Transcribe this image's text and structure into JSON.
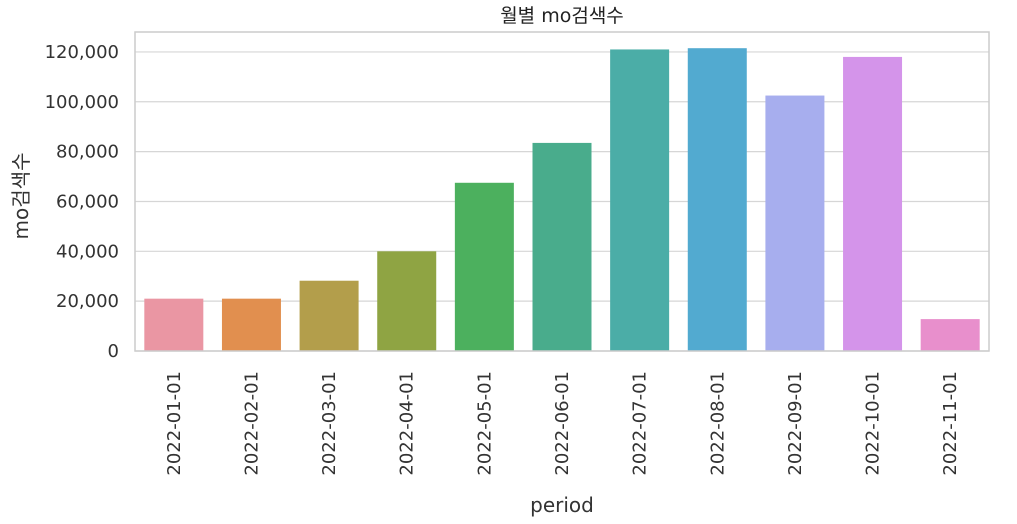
{
  "chart_data": {
    "type": "bar",
    "title": "월별 mo검색수",
    "xlabel": "period",
    "ylabel": "mo검색수",
    "categories": [
      "2022-01-01",
      "2022-02-01",
      "2022-03-01",
      "2022-04-01",
      "2022-05-01",
      "2022-06-01",
      "2022-07-01",
      "2022-08-01",
      "2022-09-01",
      "2022-10-01",
      "2022-11-01"
    ],
    "values": [
      21000,
      21000,
      28200,
      40000,
      67500,
      83500,
      121000,
      121500,
      102500,
      118000,
      12800
    ],
    "colors": [
      "#ea96a3",
      "#e18f4f",
      "#b39e4b",
      "#8fa443",
      "#4cb05e",
      "#49ac8c",
      "#4bada7",
      "#52aad0",
      "#a7aeee",
      "#d494ea",
      "#e88fcc"
    ],
    "ylim": [
      0,
      128000
    ],
    "yticks": [
      0,
      20000,
      40000,
      60000,
      80000,
      100000,
      120000
    ],
    "ytick_labels": [
      "0",
      "20,000",
      "40,000",
      "60,000",
      "80,000",
      "100,000",
      "120,000"
    ],
    "grid": true,
    "style": "whitegrid"
  }
}
